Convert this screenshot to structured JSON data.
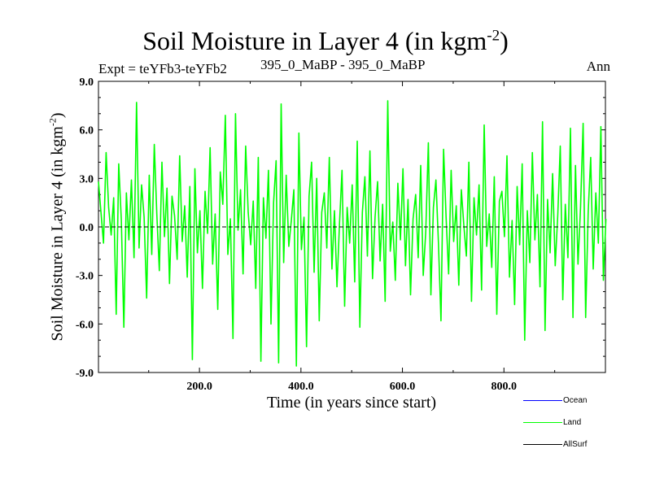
{
  "header": {
    "title_main": "Soil Moisture in Layer 4 (in kgm",
    "title_exp": "-2",
    "title_close": ")",
    "expt_label": "Expt = teYFb3-teYFb2",
    "run_label": "395_0_MaBP - 395_0_MaBP",
    "period_label": "Ann"
  },
  "chart_data": {
    "type": "line",
    "title": "Soil Moisture in Layer 4 (in kgm-2)",
    "xlabel": "Time (in years since start)",
    "ylabel_main": "Soil Moisture in Layer 4 (in kgm",
    "ylabel_exp": "-2",
    "ylabel_close": ")",
    "xlim": [
      1,
      1000
    ],
    "ylim": [
      -9.0,
      9.0
    ],
    "xticks": [
      200,
      400,
      600,
      800
    ],
    "xtick_labels": [
      "200.0",
      "400.0",
      "600.0",
      "800.0"
    ],
    "yticks": [
      -9,
      -6,
      -3,
      0,
      3,
      6,
      9
    ],
    "ytick_labels": [
      "-9.0",
      "-6.0",
      "-3.0",
      "0.0",
      "3.0",
      "6.0",
      "9.0"
    ],
    "zero_line": 0.0,
    "x_start": 1,
    "x_step": 5,
    "series": [
      {
        "name": "Land",
        "color": "#00ff00",
        "values": [
          2.8,
          0.9,
          -1.0,
          4.6,
          1.2,
          -0.5,
          1.8,
          -5.4,
          3.9,
          0.4,
          -6.2,
          2.1,
          -0.8,
          2.9,
          -1.9,
          7.7,
          -1.3,
          2.6,
          0.6,
          -4.4,
          3.2,
          -1.7,
          5.1,
          0.8,
          -2.7,
          4.0,
          -0.6,
          2.4,
          -3.5,
          1.9,
          0.7,
          -2.0,
          4.4,
          -0.9,
          1.3,
          -3.1,
          2.5,
          -8.2,
          3.6,
          -1.6,
          1.0,
          -3.8,
          2.2,
          -0.4,
          4.9,
          -2.3,
          0.8,
          -5.1,
          3.4,
          1.4,
          6.9,
          -1.7,
          0.5,
          -6.9,
          7.0,
          -0.2,
          2.3,
          -2.9,
          5.0,
          0.9,
          -1.1,
          1.6,
          -3.8,
          4.3,
          -8.3,
          1.8,
          -0.7,
          3.5,
          -6.0,
          1.5,
          4.1,
          -8.4,
          7.6,
          -2.2,
          3.2,
          -1.2,
          0.4,
          2.3,
          -8.6,
          5.8,
          -1.4,
          0.6,
          -7.4,
          1.9,
          4.0,
          -2.8,
          3.0,
          -5.8,
          0.9,
          2.1,
          -1.3,
          4.3,
          -2.6,
          1.0,
          -3.7,
          0.2,
          3.5,
          -4.9,
          1.2,
          -1.0,
          2.6,
          -3.4,
          5.3,
          -6.2,
          0.9,
          3.1,
          -1.8,
          4.7,
          -3.2,
          0.6,
          2.8,
          -2.1,
          1.4,
          -4.6,
          7.8,
          -1.5,
          0.3,
          -3.3,
          2.7,
          -0.8,
          3.6,
          -2.4,
          1.7,
          -4.2,
          0.5,
          2.0,
          -1.9,
          3.8,
          -3.0,
          -0.3,
          5.2,
          -4.2,
          1.2,
          2.9,
          -1.0,
          -5.8,
          4.8,
          0.6,
          -2.9,
          3.5,
          -0.9,
          1.3,
          -3.6,
          2.3,
          0.1,
          -1.8,
          4.0,
          -4.6,
          1.8,
          -0.5,
          2.6,
          -3.9,
          6.3,
          -1.2,
          0.8,
          -2.5,
          3.1,
          -5.4,
          1.6,
          2.2,
          -0.6,
          4.4,
          -3.1,
          0.4,
          -4.8,
          2.5,
          -1.1,
          3.9,
          -7.0,
          1.0,
          -2.2,
          4.6,
          -0.8,
          2.0,
          -3.7,
          6.5,
          -6.4,
          1.7,
          -1.6,
          3.3,
          -2.4,
          0.7,
          5.0,
          -4.5,
          1.4,
          -1.9,
          6.1,
          -5.6,
          3.8,
          -2.3,
          1.2,
          6.4,
          -5.6,
          0.9,
          4.3,
          -2.6,
          2.1,
          -1.0,
          6.2,
          -3.3,
          0.5
        ]
      }
    ]
  },
  "legend": [
    {
      "label": "Ocean",
      "color": "#0000ff"
    },
    {
      "label": "Land",
      "color": "#00ff00"
    },
    {
      "label": "AllSurf",
      "color": "#000000"
    }
  ]
}
